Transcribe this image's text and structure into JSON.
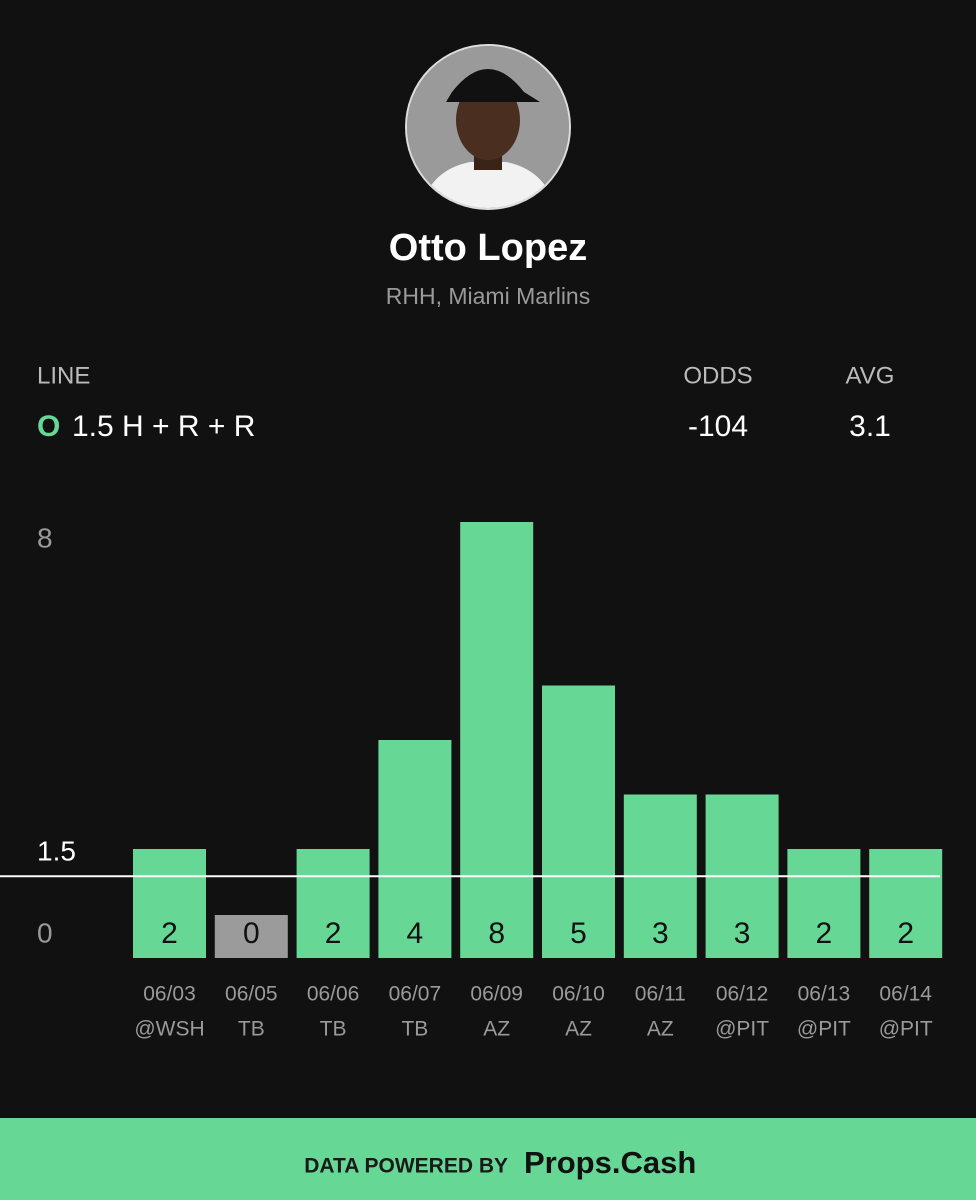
{
  "header": {
    "name": "Otto Lopez",
    "subtitle": "RHH, Miami Marlins"
  },
  "line": {
    "label": "LINE",
    "side": "O",
    "text": "1.5 H + R + R"
  },
  "odds": {
    "label": "ODDS",
    "value": -104
  },
  "avg": {
    "label": "AVG",
    "value": 3.1
  },
  "chart_data": {
    "type": "bar",
    "categories": [
      "06/03",
      "06/05",
      "06/06",
      "06/07",
      "06/09",
      "06/10",
      "06/11",
      "06/12",
      "06/13",
      "06/14"
    ],
    "opponents": [
      "@WSH",
      "TB",
      "TB",
      "TB",
      "AZ",
      "AZ",
      "AZ",
      "@PIT",
      "@PIT",
      "@PIT"
    ],
    "values": [
      2,
      0,
      2,
      4,
      8,
      5,
      3,
      3,
      2,
      2
    ],
    "ylim": [
      0,
      8
    ],
    "yticks": [
      0,
      8
    ],
    "threshold": 1.5,
    "color": "#67d796",
    "below_color": "#9b9b9b"
  },
  "footer": {
    "text": "DATA POWERED BY",
    "brand": "Props.Cash"
  }
}
